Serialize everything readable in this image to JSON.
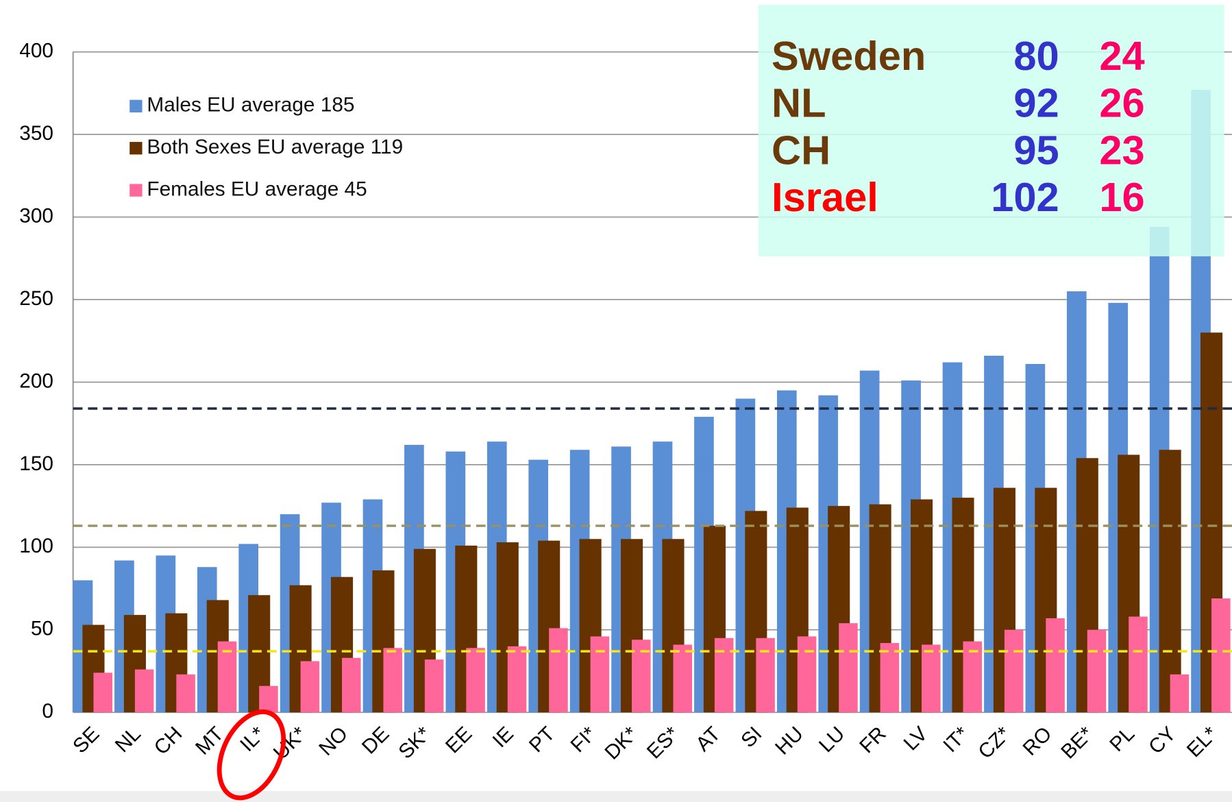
{
  "chart_data": {
    "type": "bar",
    "categories": [
      "SE",
      "NL",
      "CH",
      "MT",
      "IL*",
      "UK*",
      "NO",
      "DE",
      "SK*",
      "EE",
      "IE",
      "PT",
      "FI*",
      "DK*",
      "ES*",
      "AT",
      "SI",
      "HU",
      "LU",
      "FR",
      "LV",
      "IT*",
      "CZ*",
      "RO",
      "BE*",
      "PL",
      "CY",
      "EL*"
    ],
    "series": [
      {
        "name": "Males EU average 185",
        "color": "#5a8fd6",
        "values": [
          80,
          92,
          95,
          88,
          102,
          120,
          127,
          129,
          162,
          158,
          164,
          153,
          159,
          161,
          164,
          179,
          190,
          195,
          192,
          207,
          201,
          212,
          216,
          211,
          255,
          248,
          294,
          377
        ]
      },
      {
        "name": "Both Sexes EU average 119",
        "color": "#663300",
        "values": [
          53,
          59,
          60,
          68,
          71,
          77,
          82,
          86,
          99,
          101,
          103,
          104,
          105,
          105,
          105,
          113,
          122,
          124,
          125,
          126,
          129,
          130,
          136,
          136,
          154,
          156,
          159,
          230
        ]
      },
      {
        "name": "Females EU average 45",
        "color": "#ff6699",
        "values": [
          24,
          26,
          23,
          43,
          16,
          31,
          33,
          39,
          32,
          39,
          40,
          51,
          46,
          44,
          41,
          45,
          45,
          46,
          54,
          42,
          41,
          43,
          50,
          57,
          50,
          58,
          23,
          69
        ]
      }
    ],
    "reference_lines": [
      {
        "value": 184,
        "color": "#1f2a44"
      },
      {
        "value": 113,
        "color": "#9a9060"
      },
      {
        "value": 37,
        "color": "#f5e51b"
      }
    ],
    "ylim": [
      0,
      400
    ],
    "yticks": [
      0,
      50,
      100,
      150,
      200,
      250,
      300,
      350,
      400
    ],
    "grid": true,
    "inset": [
      {
        "label": "Sweden",
        "males": 80,
        "females": 24,
        "color": "#6b3a0a"
      },
      {
        "label": "NL",
        "males": 92,
        "females": 26,
        "color": "#6b3a0a"
      },
      {
        "label": "CH",
        "males": 95,
        "females": 23,
        "color": "#6b3a0a"
      },
      {
        "label": "Israel",
        "males": 102,
        "females": 16,
        "color": "#ff0000"
      }
    ]
  }
}
